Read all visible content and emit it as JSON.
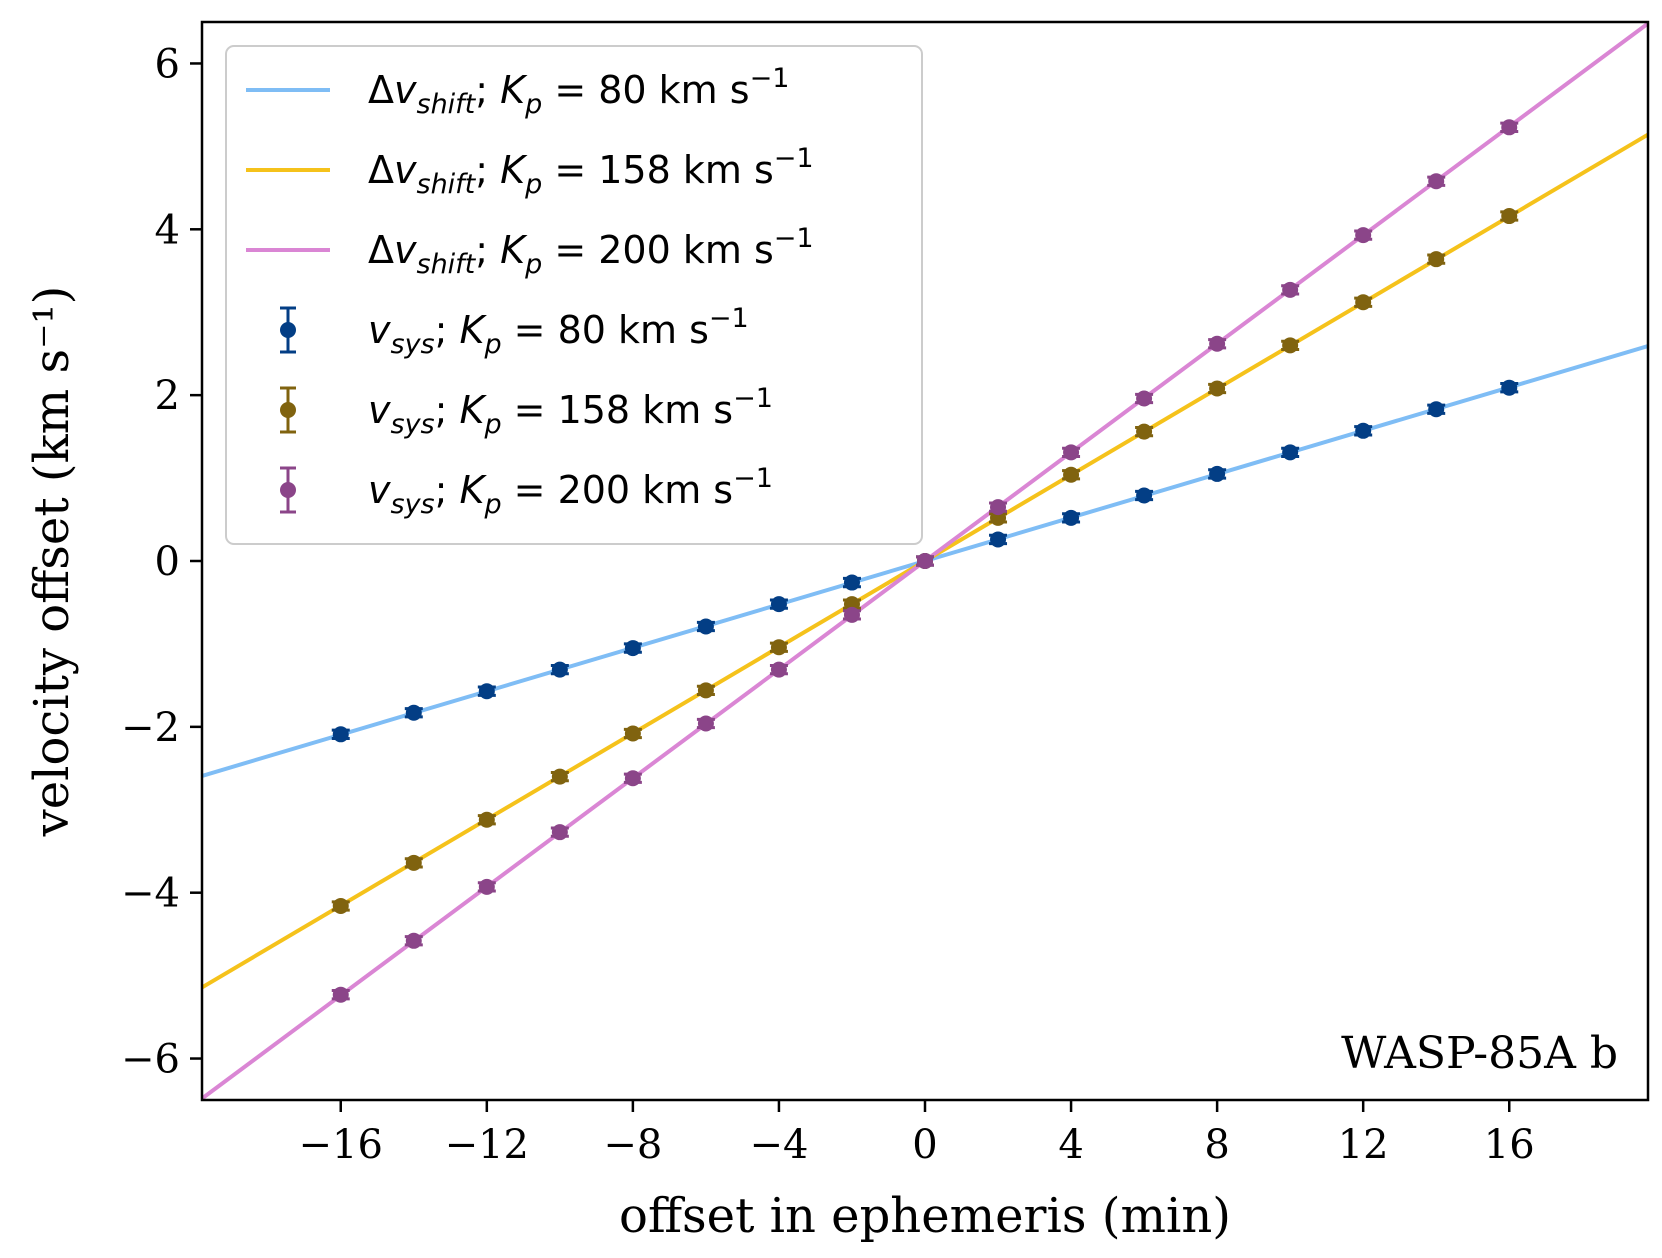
{
  "chart_data": {
    "type": "line",
    "xlabel": "offset in ephemeris (min)",
    "ylabel": "velocity offset (km s⁻¹)",
    "xlim": [
      -19.8,
      19.8
    ],
    "ylim": [
      -6.5,
      6.5
    ],
    "xticks": [
      -16,
      -12,
      -8,
      -4,
      0,
      4,
      8,
      12,
      16
    ],
    "yticks": [
      -6,
      -4,
      -2,
      0,
      2,
      4,
      6
    ],
    "xtick_labels": [
      "−16",
      "−12",
      "−8",
      "−4",
      "0",
      "4",
      "8",
      "12",
      "16"
    ],
    "ytick_labels": [
      "−6",
      "−4",
      "−2",
      "0",
      "2",
      "4",
      "6"
    ],
    "grid": false,
    "legend_position": "top-left",
    "annotation": "WASP-85A b",
    "lines": [
      {
        "name": "Δv_shift; K_p = 80 km s⁻¹",
        "sym": "Δv",
        "sub": "shift",
        "kp": "80",
        "color": "#7fbdf5",
        "slope": 0.1309
      },
      {
        "name": "Δv_shift; K_p = 158 km s⁻¹",
        "sym": "Δv",
        "sub": "shift",
        "kp": "158",
        "color": "#f5c21b",
        "slope": 0.2597
      },
      {
        "name": "Δv_shift; K_p = 200 km s⁻¹",
        "sym": "Δv",
        "sub": "shift",
        "kp": "200",
        "color": "#da86d4",
        "slope": 0.3274
      }
    ],
    "x": [
      -16,
      -14,
      -12,
      -10,
      -8,
      -6,
      -4,
      -2,
      0,
      2,
      4,
      6,
      8,
      10,
      12,
      14,
      16
    ],
    "series": [
      {
        "name": "v_sys; K_p = 80 km s⁻¹",
        "sym": "v",
        "sub": "sys",
        "kp": "80",
        "color": "#033e85",
        "values": [
          -2.09,
          -1.83,
          -1.57,
          -1.31,
          -1.05,
          -0.79,
          -0.52,
          -0.26,
          0.0,
          0.26,
          0.52,
          0.79,
          1.05,
          1.31,
          1.57,
          1.83,
          2.09
        ],
        "error": 0.05
      },
      {
        "name": "v_sys; K_p = 158 km s⁻¹",
        "sym": "v",
        "sub": "sys",
        "kp": "158",
        "color": "#80630f",
        "values": [
          -4.16,
          -3.64,
          -3.12,
          -2.6,
          -2.08,
          -1.56,
          -1.04,
          -0.52,
          0.0,
          0.52,
          1.04,
          1.56,
          2.08,
          2.6,
          3.12,
          3.64,
          4.16
        ],
        "error": 0.05
      },
      {
        "name": "v_sys; K_p = 200 km s⁻¹",
        "sym": "v",
        "sub": "sys",
        "kp": "200",
        "color": "#8b4589",
        "values": [
          -5.23,
          -4.58,
          -3.93,
          -3.27,
          -2.62,
          -1.96,
          -1.31,
          -0.65,
          0.0,
          0.65,
          1.31,
          1.96,
          2.62,
          3.27,
          3.93,
          4.58,
          5.23
        ],
        "error": 0.05
      }
    ],
    "legend_entry_unit": "km s",
    "legend_entry_exp": "−1"
  }
}
